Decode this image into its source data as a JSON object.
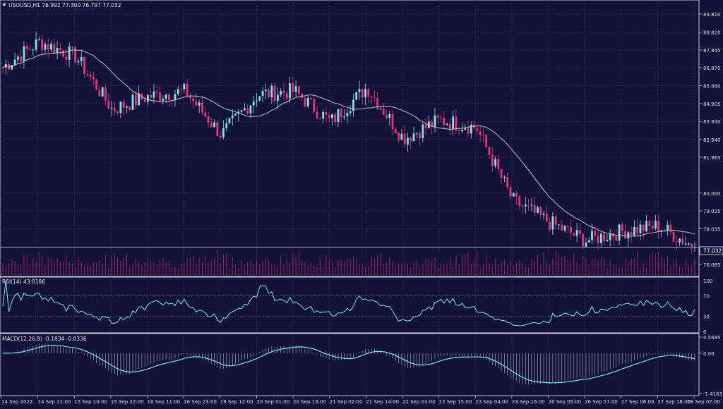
{
  "main_chart": {
    "header": "USOUSD,H1  76.992 77.300 76.797 77.032",
    "header_arrow": "triangle-down-icon",
    "price_ticks": [
      "89.810",
      "88.820",
      "87.845",
      "86.870",
      "85.880",
      "84.905",
      "83.930",
      "82.940",
      "81.965",
      "80.000",
      "79.025",
      "78.035",
      "77.032",
      "76.085"
    ],
    "current_price": "77.032",
    "colors": {
      "bull": "#7fe3e8",
      "bear": "#e8337a",
      "ma": "#c0c0c8",
      "volume": "#d02870",
      "background": "#131339",
      "grid": "#3c3c6a"
    }
  },
  "rsi": {
    "header": "RSI(14) 43.0186",
    "ticks": [
      "100",
      "70",
      "30",
      "0"
    ],
    "color": "#7fe3e8"
  },
  "macd": {
    "header": "MACD(12,26,9) -0.1834 -0.0336",
    "ticks": [
      "0.5685",
      "0.00",
      "-1.4163"
    ],
    "color": "#7fe3e8"
  },
  "time_axis": {
    "labels": [
      "14 Sep 2022",
      "14 Sep 21:00",
      "15 Sep 10:00",
      "15 Sep 22:00",
      "16 Sep 11:00",
      "16 Sep 23:00",
      "19 Sep 12:00",
      "20 Sep 01:00",
      "20 Sep 13:00",
      "21 Sep 02:00",
      "21 Sep 14:00",
      "22 Sep 03:00",
      "22 Sep 15:00",
      "23 Sep 04:00",
      "23 Sep 16:00",
      "26 Sep 05:00",
      "26 Sep 17:00",
      "27 Sep 06:00",
      "27 Sep 18:00",
      "28 Sep 07:00"
    ]
  },
  "chart_data": {
    "type": "candlestick",
    "symbol": "USOUSD",
    "timeframe": "H1",
    "last_ohlc": {
      "open": 76.992,
      "high": 77.3,
      "low": 76.797,
      "close": 77.032
    },
    "price_anchor_closes": [
      {
        "t": "14 Sep 2022",
        "close": 86.9
      },
      {
        "t": "14 Sep 21:00",
        "close": 88.3
      },
      {
        "t": "15 Sep 10:00",
        "close": 87.5
      },
      {
        "t": "15 Sep 22:00",
        "close": 84.6
      },
      {
        "t": "16 Sep 11:00",
        "close": 85.3
      },
      {
        "t": "16 Sep 23:00",
        "close": 85.6
      },
      {
        "t": "19 Sep 12:00",
        "close": 83.2
      },
      {
        "t": "20 Sep 01:00",
        "close": 85.4
      },
      {
        "t": "20 Sep 13:00",
        "close": 85.6
      },
      {
        "t": "21 Sep 02:00",
        "close": 83.9
      },
      {
        "t": "21 Sep 14:00",
        "close": 85.8
      },
      {
        "t": "22 Sep 03:00",
        "close": 83.0
      },
      {
        "t": "22 Sep 15:00",
        "close": 84.0
      },
      {
        "t": "23 Sep 04:00",
        "close": 83.6
      },
      {
        "t": "23 Sep 16:00",
        "close": 79.6
      },
      {
        "t": "26 Sep 05:00",
        "close": 78.4
      },
      {
        "t": "26 Sep 17:00",
        "close": 77.4
      },
      {
        "t": "27 Sep 06:00",
        "close": 77.9
      },
      {
        "t": "27 Sep 18:00",
        "close": 78.2
      },
      {
        "t": "28 Sep 07:00",
        "close": 77.03
      }
    ],
    "rsi_period": 14,
    "rsi_last": 43.0186,
    "rsi_levels": [
      70,
      30
    ],
    "rsi_range": [
      0,
      100
    ],
    "macd_params": [
      12,
      26,
      9
    ],
    "macd_last": -0.1834,
    "macd_signal_last": -0.0336,
    "macd_range": [
      -1.4163,
      0.5685
    ]
  }
}
